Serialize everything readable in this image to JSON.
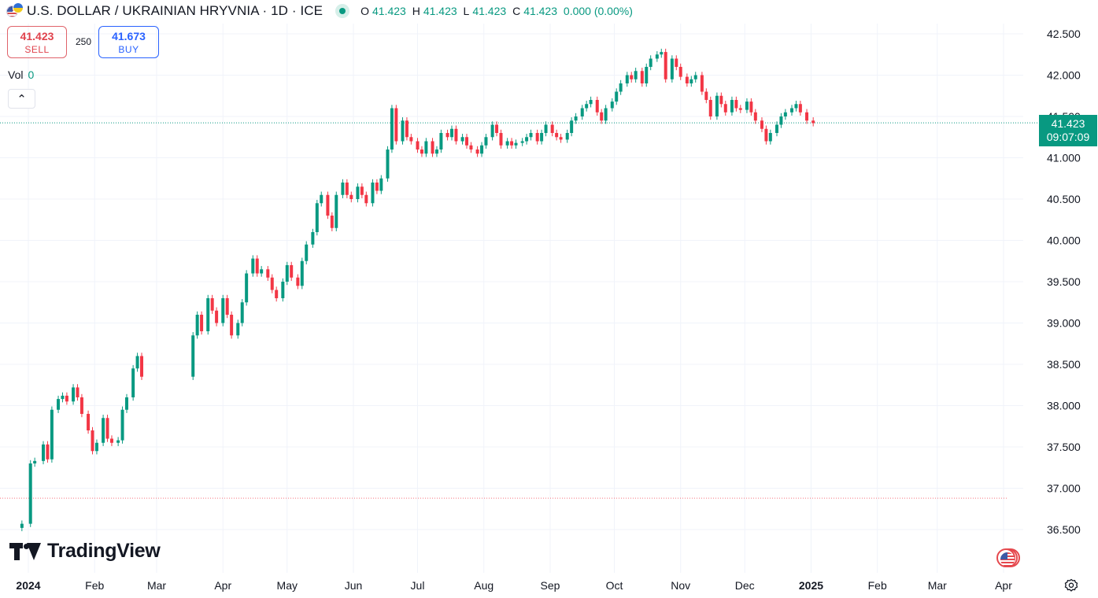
{
  "header": {
    "title": "U.S. DOLLAR / UKRAINIAN HRYVNIA · 1D · ICE",
    "ohlc": {
      "o_label": "O",
      "o": "41.423",
      "h_label": "H",
      "h": "41.423",
      "l_label": "L",
      "l": "41.423",
      "c_label": "C",
      "c": "41.423",
      "change": "0.000 (0.00%)"
    }
  },
  "trade": {
    "sell_price": "41.423",
    "sell_label": "SELL",
    "spread": "250",
    "buy_price": "41.673",
    "buy_label": "BUY"
  },
  "volume": {
    "label": "Vol",
    "value": "0"
  },
  "price_badge": {
    "price": "41.423",
    "countdown": "09:07:09"
  },
  "logo": {
    "text": "TradingView"
  },
  "icons": [
    "usd-uah-flag-icon",
    "live-status-icon",
    "chevron-up-icon",
    "tradingview-logo-icon",
    "us-flag-event-icon",
    "settings-icon"
  ],
  "colors": {
    "up": "#089981",
    "down": "#f23645",
    "grid": "#f0f3fa",
    "text": "#131722",
    "buy": "#2962ff",
    "sell": "#e0424c"
  },
  "chart_data": {
    "type": "candlestick",
    "title": "U.S. DOLLAR / UKRAINIAN HRYVNIA · 1D · ICE",
    "xlabel": "",
    "ylabel": "",
    "ylim": [
      36.35,
      42.65
    ],
    "y_ticks": [
      "36.500",
      "37.000",
      "37.500",
      "38.000",
      "38.500",
      "39.000",
      "39.500",
      "40.000",
      "40.500",
      "41.000",
      "41.500",
      "42.000",
      "42.500"
    ],
    "x_ticks": [
      {
        "label": "2024",
        "date": "2024-01-01",
        "bold": true
      },
      {
        "label": "Feb",
        "date": "2024-02-01",
        "bold": false
      },
      {
        "label": "Mar",
        "date": "2024-03-01",
        "bold": false
      },
      {
        "label": "Apr",
        "date": "2024-04-01",
        "bold": false
      },
      {
        "label": "May",
        "date": "2024-05-01",
        "bold": false
      },
      {
        "label": "Jun",
        "date": "2024-06-01",
        "bold": false
      },
      {
        "label": "Jul",
        "date": "2024-07-01",
        "bold": false
      },
      {
        "label": "Aug",
        "date": "2024-08-01",
        "bold": false
      },
      {
        "label": "Sep",
        "date": "2024-09-01",
        "bold": false
      },
      {
        "label": "Oct",
        "date": "2024-10-01",
        "bold": false
      },
      {
        "label": "Nov",
        "date": "2024-11-01",
        "bold": false
      },
      {
        "label": "Dec",
        "date": "2024-12-01",
        "bold": false
      },
      {
        "label": "2025",
        "date": "2025-01-01",
        "bold": true
      },
      {
        "label": "Feb",
        "date": "2025-02-01",
        "bold": false
      },
      {
        "label": "Mar",
        "date": "2025-03-01",
        "bold": false
      },
      {
        "label": "Apr",
        "date": "2025-04-01",
        "bold": false
      }
    ],
    "last_price": 41.423,
    "reference_line": 36.88,
    "grid": true,
    "candles": [
      {
        "d": "2023-12-29",
        "c": 36.57
      },
      {
        "d": "2024-01-02",
        "c": 37.3
      },
      {
        "d": "2024-01-04",
        "c": 37.33
      },
      {
        "d": "2024-01-08",
        "c": 37.53
      },
      {
        "d": "2024-01-10",
        "c": 37.35
      },
      {
        "d": "2024-01-12",
        "c": 37.95
      },
      {
        "d": "2024-01-15",
        "c": 38.08
      },
      {
        "d": "2024-01-17",
        "c": 38.12
      },
      {
        "d": "2024-01-19",
        "c": 38.05
      },
      {
        "d": "2024-01-22",
        "c": 38.22
      },
      {
        "d": "2024-01-24",
        "c": 38.1
      },
      {
        "d": "2024-01-26",
        "c": 37.9
      },
      {
        "d": "2024-01-29",
        "c": 37.7
      },
      {
        "d": "2024-01-31",
        "c": 37.45
      },
      {
        "d": "2024-02-02",
        "c": 37.55
      },
      {
        "d": "2024-02-05",
        "c": 37.85
      },
      {
        "d": "2024-02-07",
        "c": 37.6
      },
      {
        "d": "2024-02-09",
        "c": 37.55
      },
      {
        "d": "2024-02-12",
        "c": 37.58
      },
      {
        "d": "2024-02-14",
        "c": 37.95
      },
      {
        "d": "2024-02-16",
        "c": 38.1
      },
      {
        "d": "2024-02-19",
        "c": 38.45
      },
      {
        "d": "2024-02-21",
        "c": 38.6
      },
      {
        "d": "2024-02-23",
        "c": 38.35
      },
      {
        "d": "2024-03-18",
        "c": 38.85
      },
      {
        "d": "2024-03-20",
        "c": 39.1
      },
      {
        "d": "2024-03-22",
        "c": 38.9
      },
      {
        "d": "2024-03-25",
        "c": 39.3
      },
      {
        "d": "2024-03-27",
        "c": 39.15
      },
      {
        "d": "2024-03-29",
        "c": 39.0
      },
      {
        "d": "2024-04-01",
        "c": 39.3
      },
      {
        "d": "2024-04-03",
        "c": 39.1
      },
      {
        "d": "2024-04-05",
        "c": 38.85
      },
      {
        "d": "2024-04-08",
        "c": 39.0
      },
      {
        "d": "2024-04-10",
        "c": 39.25
      },
      {
        "d": "2024-04-12",
        "c": 39.6
      },
      {
        "d": "2024-04-15",
        "c": 39.78
      },
      {
        "d": "2024-04-17",
        "c": 39.6
      },
      {
        "d": "2024-04-19",
        "c": 39.65
      },
      {
        "d": "2024-04-22",
        "c": 39.55
      },
      {
        "d": "2024-04-24",
        "c": 39.4
      },
      {
        "d": "2024-04-26",
        "c": 39.3
      },
      {
        "d": "2024-04-29",
        "c": 39.5
      },
      {
        "d": "2024-05-01",
        "c": 39.7
      },
      {
        "d": "2024-05-03",
        "c": 39.55
      },
      {
        "d": "2024-05-06",
        "c": 39.45
      },
      {
        "d": "2024-05-08",
        "c": 39.75
      },
      {
        "d": "2024-05-10",
        "c": 39.95
      },
      {
        "d": "2024-05-13",
        "c": 40.1
      },
      {
        "d": "2024-05-15",
        "c": 40.45
      },
      {
        "d": "2024-05-17",
        "c": 40.55
      },
      {
        "d": "2024-05-20",
        "c": 40.3
      },
      {
        "d": "2024-05-22",
        "c": 40.15
      },
      {
        "d": "2024-05-24",
        "c": 40.55
      },
      {
        "d": "2024-05-27",
        "c": 40.7
      },
      {
        "d": "2024-05-29",
        "c": 40.55
      },
      {
        "d": "2024-05-31",
        "c": 40.5
      },
      {
        "d": "2024-06-03",
        "c": 40.65
      },
      {
        "d": "2024-06-05",
        "c": 40.55
      },
      {
        "d": "2024-06-07",
        "c": 40.45
      },
      {
        "d": "2024-06-10",
        "c": 40.7
      },
      {
        "d": "2024-06-12",
        "c": 40.6
      },
      {
        "d": "2024-06-14",
        "c": 40.75
      },
      {
        "d": "2024-06-17",
        "c": 41.1
      },
      {
        "d": "2024-06-19",
        "c": 41.6
      },
      {
        "d": "2024-06-21",
        "c": 41.2
      },
      {
        "d": "2024-06-24",
        "c": 41.45
      },
      {
        "d": "2024-06-26",
        "c": 41.25
      },
      {
        "d": "2024-06-28",
        "c": 41.2
      },
      {
        "d": "2024-07-01",
        "c": 41.1
      },
      {
        "d": "2024-07-03",
        "c": 41.05
      },
      {
        "d": "2024-07-05",
        "c": 41.2
      },
      {
        "d": "2024-07-08",
        "c": 41.05
      },
      {
        "d": "2024-07-10",
        "c": 41.1
      },
      {
        "d": "2024-07-12",
        "c": 41.3
      },
      {
        "d": "2024-07-15",
        "c": 41.25
      },
      {
        "d": "2024-07-17",
        "c": 41.35
      },
      {
        "d": "2024-07-19",
        "c": 41.2
      },
      {
        "d": "2024-07-22",
        "c": 41.25
      },
      {
        "d": "2024-07-24",
        "c": 41.15
      },
      {
        "d": "2024-07-26",
        "c": 41.1
      },
      {
        "d": "2024-07-29",
        "c": 41.05
      },
      {
        "d": "2024-07-31",
        "c": 41.15
      },
      {
        "d": "2024-08-02",
        "c": 41.25
      },
      {
        "d": "2024-08-05",
        "c": 41.4
      },
      {
        "d": "2024-08-07",
        "c": 41.3
      },
      {
        "d": "2024-08-09",
        "c": 41.15
      },
      {
        "d": "2024-08-12",
        "c": 41.2
      },
      {
        "d": "2024-08-14",
        "c": 41.15
      },
      {
        "d": "2024-08-16",
        "c": 41.18
      },
      {
        "d": "2024-08-19",
        "c": 41.2
      },
      {
        "d": "2024-08-21",
        "c": 41.25
      },
      {
        "d": "2024-08-23",
        "c": 41.3
      },
      {
        "d": "2024-08-26",
        "c": 41.2
      },
      {
        "d": "2024-08-28",
        "c": 41.3
      },
      {
        "d": "2024-08-30",
        "c": 41.4
      },
      {
        "d": "2024-09-02",
        "c": 41.3
      },
      {
        "d": "2024-09-04",
        "c": 41.25
      },
      {
        "d": "2024-09-06",
        "c": 41.22
      },
      {
        "d": "2024-09-09",
        "c": 41.3
      },
      {
        "d": "2024-09-11",
        "c": 41.45
      },
      {
        "d": "2024-09-13",
        "c": 41.5
      },
      {
        "d": "2024-09-16",
        "c": 41.6
      },
      {
        "d": "2024-09-18",
        "c": 41.65
      },
      {
        "d": "2024-09-20",
        "c": 41.7
      },
      {
        "d": "2024-09-23",
        "c": 41.55
      },
      {
        "d": "2024-09-25",
        "c": 41.45
      },
      {
        "d": "2024-09-27",
        "c": 41.6
      },
      {
        "d": "2024-09-30",
        "c": 41.68
      },
      {
        "d": "2024-10-02",
        "c": 41.8
      },
      {
        "d": "2024-10-04",
        "c": 41.9
      },
      {
        "d": "2024-10-07",
        "c": 42.0
      },
      {
        "d": "2024-10-09",
        "c": 41.95
      },
      {
        "d": "2024-10-11",
        "c": 42.05
      },
      {
        "d": "2024-10-14",
        "c": 41.9
      },
      {
        "d": "2024-10-16",
        "c": 42.1
      },
      {
        "d": "2024-10-18",
        "c": 42.2
      },
      {
        "d": "2024-10-21",
        "c": 42.25
      },
      {
        "d": "2024-10-23",
        "c": 42.28
      },
      {
        "d": "2024-10-25",
        "c": 41.95
      },
      {
        "d": "2024-10-28",
        "c": 42.2
      },
      {
        "d": "2024-10-30",
        "c": 42.1
      },
      {
        "d": "2024-11-01",
        "c": 41.98
      },
      {
        "d": "2024-11-04",
        "c": 41.9
      },
      {
        "d": "2024-11-06",
        "c": 41.95
      },
      {
        "d": "2024-11-08",
        "c": 42.0
      },
      {
        "d": "2024-11-11",
        "c": 41.8
      },
      {
        "d": "2024-11-13",
        "c": 41.7
      },
      {
        "d": "2024-11-15",
        "c": 41.5
      },
      {
        "d": "2024-11-18",
        "c": 41.75
      },
      {
        "d": "2024-11-20",
        "c": 41.65
      },
      {
        "d": "2024-11-22",
        "c": 41.55
      },
      {
        "d": "2024-11-25",
        "c": 41.7
      },
      {
        "d": "2024-11-27",
        "c": 41.6
      },
      {
        "d": "2024-11-29",
        "c": 41.58
      },
      {
        "d": "2024-12-02",
        "c": 41.68
      },
      {
        "d": "2024-12-04",
        "c": 41.55
      },
      {
        "d": "2024-12-06",
        "c": 41.45
      },
      {
        "d": "2024-12-09",
        "c": 41.35
      },
      {
        "d": "2024-12-11",
        "c": 41.2
      },
      {
        "d": "2024-12-13",
        "c": 41.3
      },
      {
        "d": "2024-12-16",
        "c": 41.4
      },
      {
        "d": "2024-12-18",
        "c": 41.5
      },
      {
        "d": "2024-12-20",
        "c": 41.55
      },
      {
        "d": "2024-12-23",
        "c": 41.6
      },
      {
        "d": "2024-12-25",
        "c": 41.65
      },
      {
        "d": "2024-12-27",
        "c": 41.55
      },
      {
        "d": "2024-12-30",
        "c": 41.45
      },
      {
        "d": "2025-01-02",
        "c": 41.42
      }
    ]
  }
}
